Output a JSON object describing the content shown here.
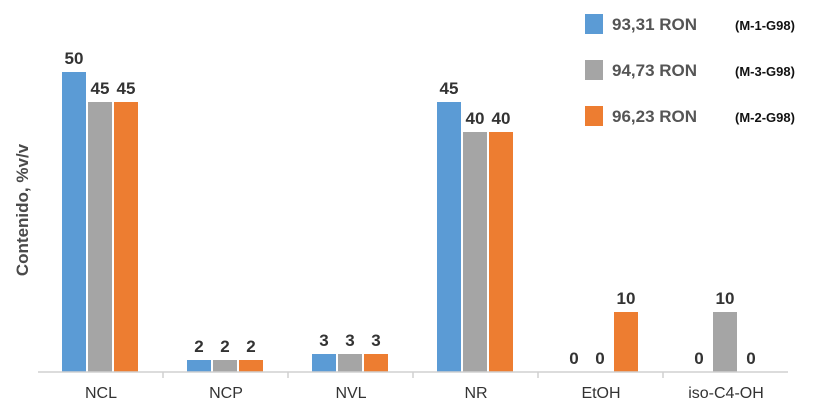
{
  "chart_data": {
    "type": "bar",
    "title": "",
    "xlabel": "",
    "ylabel": "Contenido, %v/v",
    "ylim": [
      0,
      55
    ],
    "grid": false,
    "legend_position": "top-right",
    "categories": [
      "NCL",
      "NCP",
      "NVL",
      "NR",
      "EtOH",
      "iso-C4-OH"
    ],
    "series": [
      {
        "name": "93,31 RON",
        "note": "(M-1-G98)",
        "color": "#5b9bd5",
        "values": [
          50,
          2,
          3,
          45,
          0,
          0
        ]
      },
      {
        "name": "94,73 RON",
        "note": "(M-3-G98)",
        "color": "#a5a5a5",
        "values": [
          45,
          2,
          3,
          40,
          0,
          10
        ]
      },
      {
        "name": "96,23 RON",
        "note": "(M-2-G98)",
        "color": "#ed7d31",
        "values": [
          45,
          2,
          3,
          40,
          10,
          0
        ]
      }
    ]
  }
}
